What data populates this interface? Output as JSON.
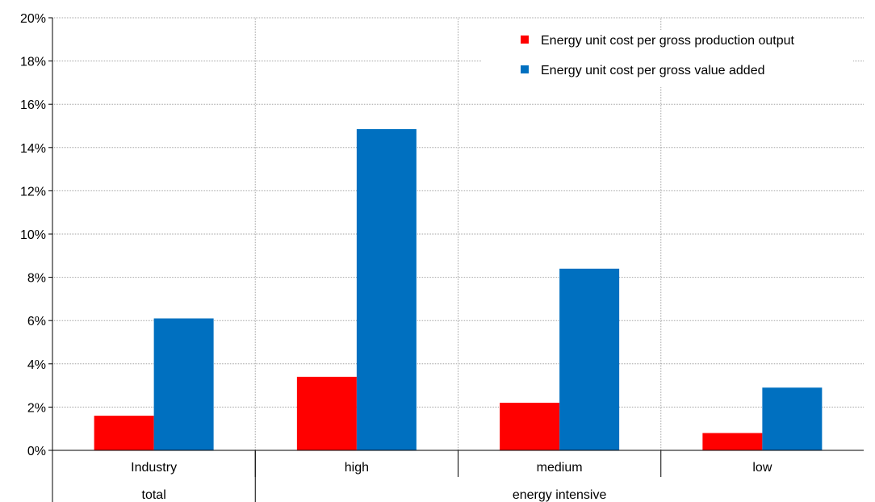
{
  "chart_data": {
    "type": "bar",
    "categories": [
      "Industry",
      "high",
      "medium",
      "low"
    ],
    "groups": [
      {
        "label": "total",
        "categories": [
          "Industry"
        ]
      },
      {
        "label": "energy intensive",
        "categories": [
          "high",
          "medium",
          "low"
        ]
      }
    ],
    "series": [
      {
        "name": "Energy unit cost per gross production output",
        "color": "#ff0000",
        "values": [
          1.6,
          3.4,
          2.2,
          0.8
        ]
      },
      {
        "name": "Energy unit cost per gross value added",
        "color": "#0070c0",
        "values": [
          6.1,
          14.85,
          8.4,
          2.9
        ]
      }
    ],
    "ylim": [
      0,
      20
    ],
    "yticks": [
      "0%",
      "2%",
      "4%",
      "6%",
      "8%",
      "10%",
      "12%",
      "14%",
      "16%",
      "18%",
      "20%"
    ],
    "ytick_values": [
      0,
      2,
      4,
      6,
      8,
      10,
      12,
      14,
      16,
      18,
      20
    ],
    "grid": true,
    "legend_position": "top-right",
    "xlabel": "",
    "ylabel": "",
    "title": ""
  }
}
